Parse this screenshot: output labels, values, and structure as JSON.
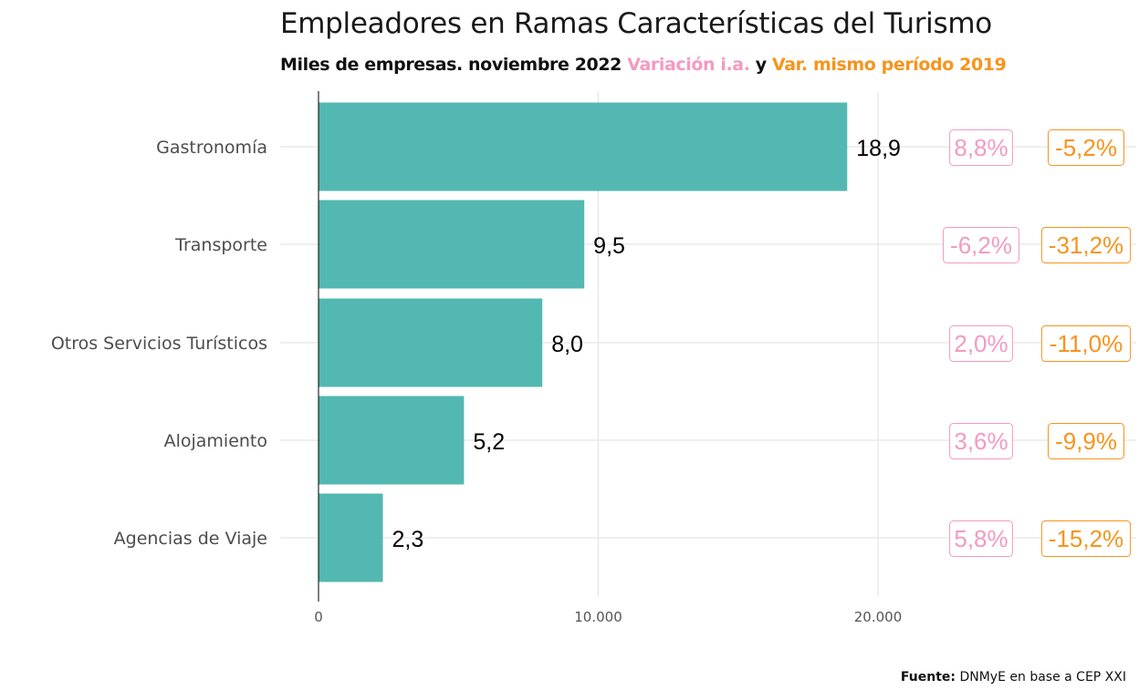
{
  "title": "Empleadores en Ramas Características del Turismo",
  "subtitle": {
    "part1": "Miles de empresas. noviembre 2022",
    "part2": "Variación i.a.",
    "part3": "y",
    "part4": "Var. mismo período 2019"
  },
  "colors": {
    "bar": "#52b8b1",
    "pink": "#f49ac2",
    "orange": "#f7941d",
    "grid": "#e5e5e5",
    "axis": "#000000"
  },
  "caption": {
    "label": "Fuente:",
    "text": "DNMyE en base a CEP XXI"
  },
  "chart_data": {
    "type": "bar",
    "orientation": "horizontal",
    "categories": [
      "Gastronomía",
      "Transporte",
      "Otros Servicios Turísticos",
      "Alojamiento",
      "Agencias de Viaje"
    ],
    "values": [
      18900,
      9500,
      8000,
      5200,
      2300
    ],
    "value_labels": [
      "18,9",
      "9,5",
      "8,0",
      "5,2",
      "2,3"
    ],
    "var_ia": [
      "8,8%",
      "-6,2%",
      "2,0%",
      "3,6%",
      "5,8%"
    ],
    "var_2019": [
      "-5,2%",
      "-31,2%",
      "-11,0%",
      "-9,9%",
      "-15,2%"
    ],
    "x_ticks": [
      0,
      10000,
      20000
    ],
    "x_tick_labels": [
      "0",
      "10.000",
      "20.000"
    ],
    "xlim": [
      0,
      20000
    ],
    "grid": true
  }
}
